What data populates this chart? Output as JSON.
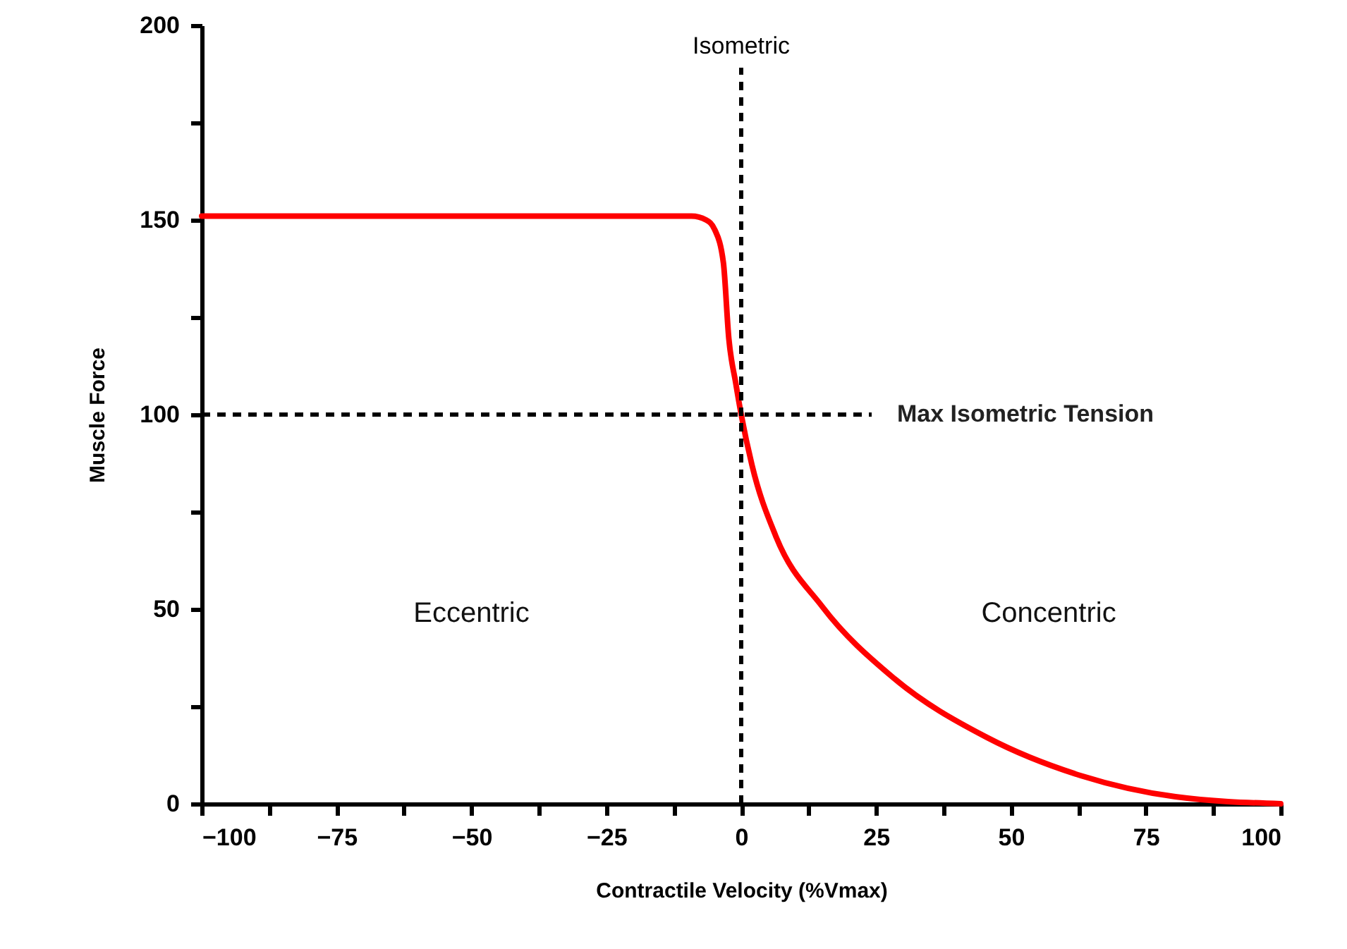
{
  "chart_data": {
    "type": "line",
    "xlabel": "Contractile Velocity (%Vmax)",
    "ylabel": "Muscle Force",
    "x": [
      -100,
      -50,
      -9.2,
      -6.5,
      -4.9,
      -3.3,
      -2.3,
      -1,
      0,
      2,
      6.4,
      15,
      28,
      45.6,
      63,
      80.5,
      100
    ],
    "series": [
      {
        "color": "#ff0000",
        "values": [
          151,
          151,
          151,
          150,
          147.5,
          139,
          119.6,
          108,
          100,
          87,
          68.8,
          50.7,
          32.6,
          17,
          7.2,
          1.8,
          0
        ]
      }
    ],
    "xlim": [
      -100,
      100
    ],
    "ylim": [
      0,
      200
    ],
    "xticks": [
      -100,
      {
        "value": -87.5,
        "label": null
      },
      -75,
      {
        "value": -62.5,
        "label": null
      },
      -50,
      {
        "value": -37.5,
        "label": null
      },
      -25,
      {
        "value": -12.5,
        "label": null
      },
      0,
      {
        "value": 12.5,
        "label": null
      },
      25,
      {
        "value": 37.5,
        "label": null
      },
      50,
      {
        "value": 62.5,
        "label": null
      },
      75,
      {
        "value": 87.5,
        "label": null
      },
      100
    ],
    "yticks": [
      0,
      {
        "value": 25,
        "label": null
      },
      50,
      {
        "value": 75,
        "label": null
      },
      100,
      {
        "value": 125,
        "label": null
      },
      150,
      {
        "value": 175,
        "label": null
      },
      200
    ],
    "ref_lines": [
      {
        "axis": "x",
        "value": 0,
        "label": "Isometric",
        "color": "#000000",
        "line_style": "dashed"
      },
      {
        "axis": "y",
        "value": 100,
        "label": "Max Isometric Tension",
        "color": "#000000",
        "line_style": "dashed"
      }
    ],
    "annotations": [
      "Eccentric",
      "Concentric"
    ],
    "grid": false,
    "marker": "none",
    "line_style": "solid"
  }
}
